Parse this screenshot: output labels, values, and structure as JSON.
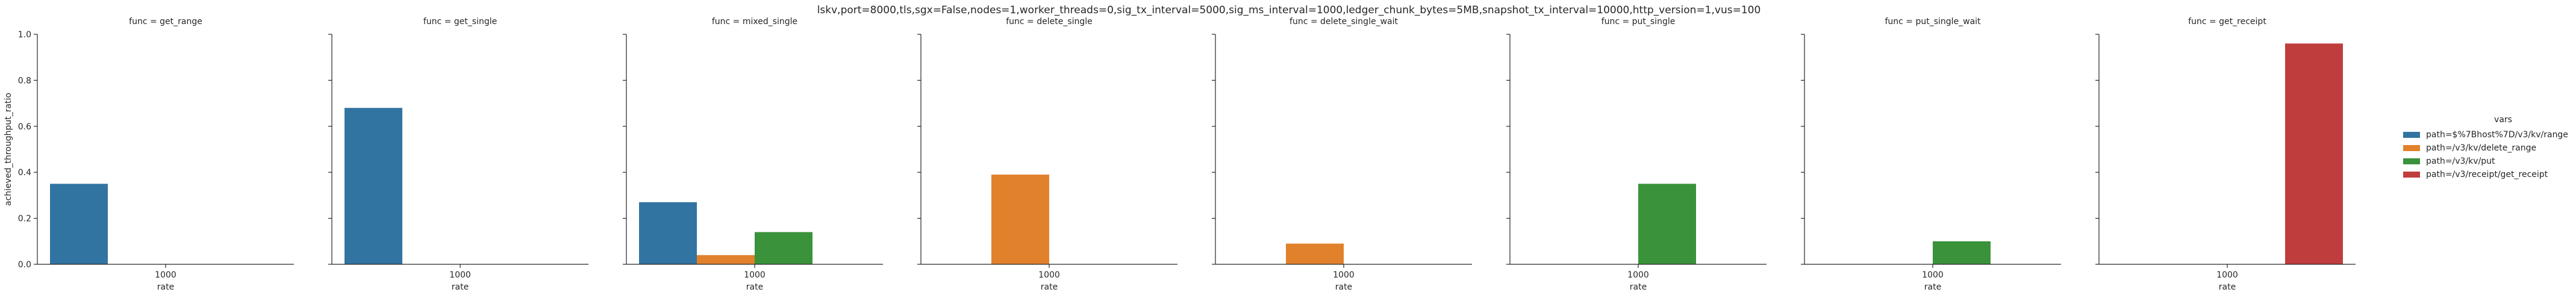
{
  "suptitle": "lskv,port=8000,tls,sgx=False,nodes=1,worker_threads=0,sig_tx_interval=5000,sig_ms_interval=1000,ledger_chunk_bytes=5MB,snapshot_tx_interval=10000,http_version=1,vus=100",
  "chart_data": {
    "type": "bar",
    "xlabel": "rate",
    "ylabel": "achieved_throughput_ratio",
    "ylim": [
      0,
      1.0
    ],
    "yticks": [
      "0.0",
      "0.2",
      "0.4",
      "0.6",
      "0.8",
      "1.0"
    ],
    "ytick_values": [
      0,
      0.2,
      0.4,
      0.6,
      0.8,
      1.0
    ],
    "categories": [
      "1000"
    ],
    "grid": false,
    "legend": {
      "title": "vars",
      "placement": "right",
      "entries": [
        {
          "label": "path=$%7Bhost%7D/v3/kv/range",
          "color": "#3274a1"
        },
        {
          "label": "path=/v3/kv/delete_range",
          "color": "#e1812c"
        },
        {
          "label": "path=/v3/kv/put",
          "color": "#3a923a"
        },
        {
          "label": "path=/v3/receipt/get_receipt",
          "color": "#c03d3e"
        }
      ]
    },
    "panels": [
      {
        "title": "func = get_range",
        "values": [
          0.35,
          null,
          null,
          null
        ]
      },
      {
        "title": "func = get_single",
        "values": [
          0.68,
          null,
          null,
          null
        ]
      },
      {
        "title": "func = mixed_single",
        "values": [
          0.27,
          0.04,
          0.14,
          null
        ]
      },
      {
        "title": "func = delete_single",
        "values": [
          null,
          0.39,
          null,
          null
        ]
      },
      {
        "title": "func = delete_single_wait",
        "values": [
          null,
          0.09,
          null,
          null
        ]
      },
      {
        "title": "func = put_single",
        "values": [
          null,
          null,
          0.35,
          null
        ]
      },
      {
        "title": "func = put_single_wait",
        "values": [
          null,
          null,
          0.1,
          null
        ]
      },
      {
        "title": "func = get_receipt",
        "values": [
          null,
          null,
          null,
          0.96
        ]
      }
    ]
  }
}
